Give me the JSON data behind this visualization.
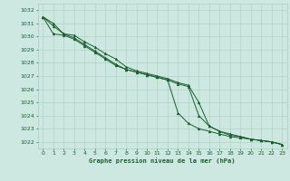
{
  "line1": [
    1031.5,
    1031.0,
    1030.2,
    1030.1,
    1029.6,
    1029.2,
    1028.7,
    1028.3,
    1027.7,
    1027.4,
    1027.2,
    1027.0,
    1026.8,
    1026.5,
    1026.3,
    1025.0,
    1023.2,
    1022.8,
    1022.5,
    1022.4,
    1022.2,
    1022.1,
    1022.0,
    1021.8
  ],
  "line2": [
    1031.5,
    1030.2,
    1030.1,
    1029.8,
    1029.3,
    1028.8,
    1028.3,
    1027.8,
    1027.5,
    1027.3,
    1027.1,
    1026.9,
    1026.7,
    1026.4,
    1026.2,
    1024.0,
    1023.2,
    1022.8,
    1022.6,
    1022.4,
    1022.2,
    1022.1,
    1022.0,
    1021.8
  ],
  "line3": [
    1031.5,
    1030.8,
    1030.2,
    1029.9,
    1029.4,
    1028.9,
    1028.4,
    1027.9,
    1027.5,
    1027.3,
    1027.1,
    1026.9,
    1026.7,
    1024.2,
    1023.4,
    1023.0,
    1022.8,
    1022.6,
    1022.4,
    1022.3,
    1022.2,
    1022.1,
    1022.0,
    1021.8
  ],
  "x": [
    0,
    1,
    2,
    3,
    4,
    5,
    6,
    7,
    8,
    9,
    10,
    11,
    12,
    13,
    14,
    15,
    16,
    17,
    18,
    19,
    20,
    21,
    22,
    23
  ],
  "ylim": [
    1021.5,
    1032.5
  ],
  "yticks": [
    1022,
    1023,
    1024,
    1025,
    1026,
    1027,
    1028,
    1029,
    1030,
    1031,
    1032
  ],
  "bg_color": "#cce8e0",
  "grid_color": "#aaccC4",
  "line_color": "#1a5e30",
  "xlabel": "Graphe pression niveau de la mer (hPa)",
  "xlabel_color": "#1a5e30",
  "tick_color": "#1a5e30",
  "figsize": [
    3.2,
    2.0
  ],
  "dpi": 100
}
